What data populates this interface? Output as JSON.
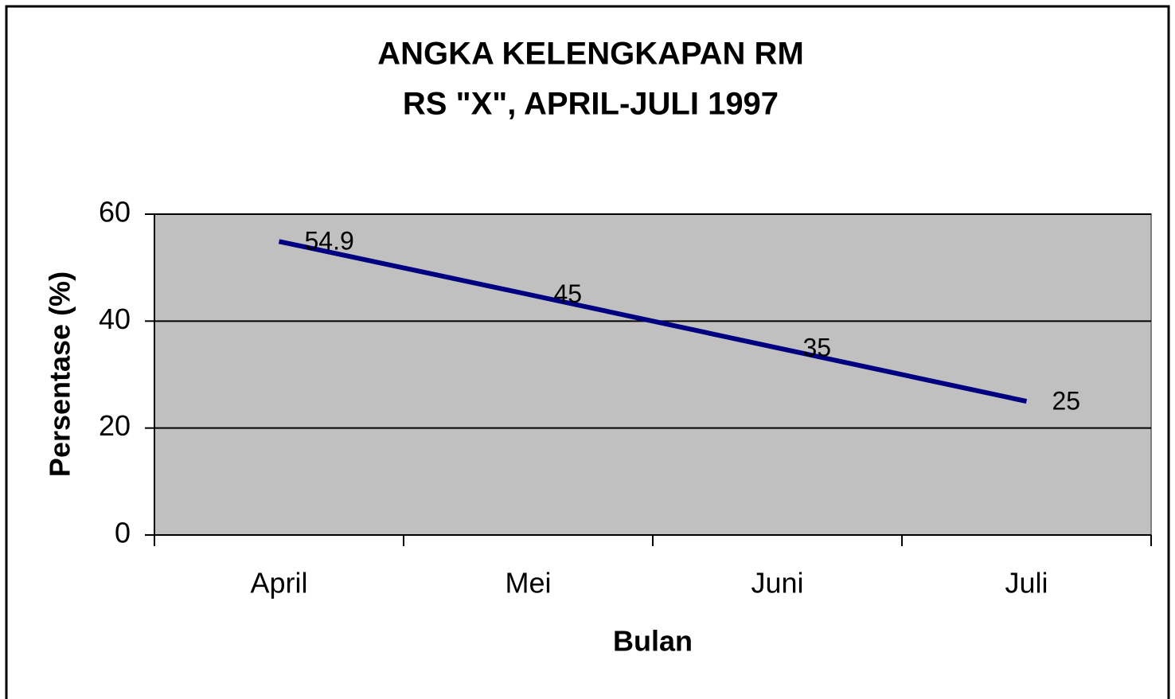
{
  "chart_data": {
    "type": "line",
    "title": "ANGKA KELENGKAPAN RM",
    "subtitle": "RS \"X\", APRIL-JULI 1997",
    "x_label": "Bulan",
    "y_label": "Persentase (%)",
    "categories": [
      "April",
      "Mei",
      "Juni",
      "Juli"
    ],
    "series": [
      {
        "name": "Persentase",
        "color": "#000080",
        "values": [
          54.9,
          45,
          35,
          25
        ]
      }
    ],
    "ylim": [
      0,
      60
    ],
    "yticks": [
      0,
      20,
      40,
      60
    ],
    "grid": true,
    "plot_background": "#c0c0c0"
  }
}
